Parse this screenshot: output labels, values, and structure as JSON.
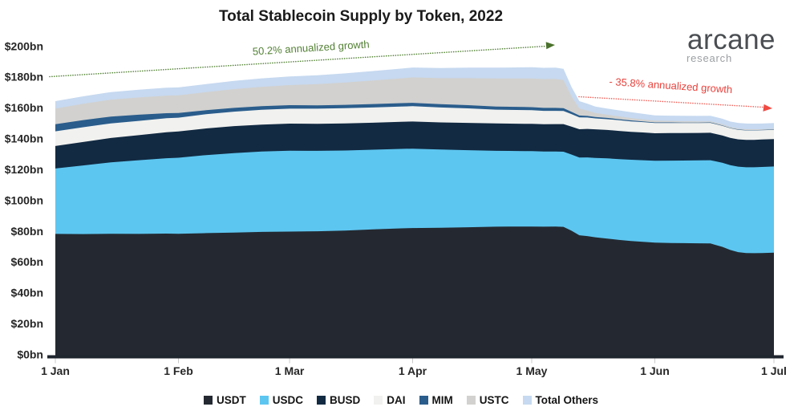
{
  "title": "Total Stablecoin Supply by Token, 2022",
  "logo": {
    "brand": "arcane",
    "sub": "research"
  },
  "chart_data": {
    "type": "area",
    "stacked": true,
    "title": "Total Stablecoin Supply by Token, 2022",
    "ylabel": "",
    "xlabel": "",
    "ylim": [
      0,
      200
    ],
    "grid": false,
    "legend_position": "bottom",
    "y_ticks": [
      0,
      20,
      40,
      60,
      80,
      100,
      120,
      140,
      160,
      180,
      200
    ],
    "y_tick_labels": [
      "$0bn",
      "$20bn",
      "$40bn",
      "$60bn",
      "$80bn",
      "$100bn",
      "$120bn",
      "$140bn",
      "$160bn",
      "$180bn",
      "$200bn"
    ],
    "x_tick_days": [
      0,
      31,
      59,
      90,
      120,
      151,
      181
    ],
    "x_tick_labels": [
      "1 Jan",
      "1 Feb",
      "1 Mar",
      "1 Apr",
      "1 May",
      "1 Jun",
      "1 Jul"
    ],
    "x_days": [
      0,
      7,
      14,
      21,
      28,
      31,
      38,
      45,
      52,
      59,
      66,
      73,
      80,
      87,
      90,
      97,
      104,
      111,
      118,
      120,
      123,
      126,
      128,
      130,
      132,
      134,
      136,
      139,
      142,
      145,
      148,
      151,
      155,
      158,
      162,
      165,
      168,
      170,
      172,
      174,
      176,
      178,
      181
    ],
    "units": "$bn",
    "series": [
      {
        "name": "USDT",
        "color": "#242931",
        "values": [
          78.4,
          78.3,
          78.5,
          78.4,
          78.6,
          78.5,
          78.9,
          79.3,
          79.7,
          79.9,
          80.1,
          80.6,
          81.3,
          82.0,
          82.2,
          82.4,
          82.7,
          83.1,
          83.2,
          83.2,
          83.1,
          83.2,
          83.0,
          80.5,
          77.5,
          77.0,
          76.2,
          75.4,
          74.5,
          73.8,
          73.3,
          72.8,
          72.5,
          72.4,
          72.3,
          72.2,
          70.0,
          68.0,
          66.6,
          66.0,
          65.9,
          66.0,
          66.2
        ]
      },
      {
        "name": "USDC",
        "color": "#5DC6F0",
        "values": [
          42.4,
          44.5,
          46.3,
          47.8,
          48.9,
          49.3,
          50.6,
          51.5,
          52.1,
          52.5,
          52.2,
          51.9,
          51.7,
          51.5,
          51.5,
          50.7,
          50.0,
          49.2,
          48.9,
          48.9,
          48.7,
          48.6,
          48.7,
          49.4,
          50.4,
          51.0,
          51.5,
          52.0,
          52.4,
          52.7,
          52.9,
          53.0,
          53.4,
          53.6,
          53.8,
          54.0,
          54.5,
          55.0,
          55.4,
          55.6,
          55.7,
          55.8,
          55.9
        ]
      },
      {
        "name": "BUSD",
        "color": "#122A42",
        "values": [
          14.6,
          15.2,
          15.8,
          16.2,
          16.8,
          17.0,
          17.3,
          17.5,
          17.5,
          17.5,
          17.5,
          17.5,
          17.5,
          17.6,
          17.6,
          17.6,
          17.7,
          17.7,
          17.7,
          17.7,
          17.7,
          17.8,
          17.9,
          18.1,
          18.4,
          18.5,
          18.5,
          18.4,
          18.3,
          18.1,
          18.0,
          17.9,
          17.9,
          17.8,
          17.8,
          17.8,
          17.7,
          17.7,
          17.7,
          17.8,
          17.8,
          17.8,
          17.8
        ]
      },
      {
        "name": "DAI",
        "color": "#F1F1EF",
        "values": [
          9.5,
          9.6,
          9.5,
          9.3,
          9.1,
          9.0,
          9.2,
          9.4,
          9.6,
          9.7,
          9.8,
          9.9,
          9.9,
          9.9,
          9.9,
          9.7,
          9.4,
          9.0,
          8.9,
          8.8,
          8.7,
          8.6,
          8.5,
          8.1,
          7.7,
          7.4,
          7.1,
          7.0,
          6.9,
          6.8,
          6.7,
          6.6,
          6.5,
          6.5,
          6.4,
          6.4,
          6.3,
          6.2,
          6.2,
          6.1,
          6.1,
          6.0,
          6.0
        ]
      },
      {
        "name": "MIM",
        "color": "#2A5D8C",
        "values": [
          4.6,
          4.6,
          4.4,
          4.0,
          3.3,
          3.0,
          2.6,
          2.4,
          2.3,
          2.3,
          2.2,
          2.2,
          2.2,
          2.2,
          2.2,
          2.1,
          2.1,
          2.0,
          2.0,
          2.0,
          1.9,
          1.9,
          1.8,
          1.5,
          1.2,
          1.0,
          0.9,
          0.8,
          0.7,
          0.6,
          0.5,
          0.4,
          0.4,
          0.3,
          0.3,
          0.3,
          0.3,
          0.2,
          0.2,
          0.2,
          0.2,
          0.2,
          0.2
        ]
      },
      {
        "name": "USTC",
        "color": "#D2D1CF",
        "values": [
          10.2,
          10.6,
          11.0,
          11.2,
          11.4,
          11.5,
          11.8,
          12.2,
          12.6,
          13.0,
          13.8,
          14.5,
          15.3,
          16.1,
          16.5,
          16.9,
          17.5,
          18.2,
          18.5,
          18.6,
          18.7,
          18.8,
          18.3,
          10.0,
          4.5,
          3.5,
          2.6,
          2.1,
          1.8,
          1.5,
          1.3,
          1.2,
          1.0,
          0.9,
          0.8,
          0.7,
          0.7,
          0.6,
          0.6,
          0.6,
          0.5,
          0.5,
          0.5
        ]
      },
      {
        "name": "Total Others",
        "color": "#C6D9F0",
        "values": [
          4.8,
          4.8,
          4.9,
          5.0,
          5.1,
          5.1,
          5.2,
          5.3,
          5.5,
          5.6,
          5.7,
          5.9,
          6.1,
          6.3,
          6.4,
          6.6,
          6.8,
          7.0,
          7.2,
          7.3,
          7.3,
          7.3,
          7.2,
          6.2,
          4.8,
          4.5,
          4.2,
          4.0,
          3.9,
          3.8,
          3.6,
          3.4,
          3.4,
          3.5,
          3.5,
          3.6,
          3.6,
          3.6,
          3.7,
          3.7,
          3.7,
          3.7,
          3.7
        ]
      }
    ],
    "annotations": [
      {
        "id": "growth",
        "text": "50.2% annualized growth",
        "color": "#538135"
      },
      {
        "id": "decline",
        "text": "- 35.8% annualized growth",
        "color": "#E8423C"
      }
    ]
  }
}
